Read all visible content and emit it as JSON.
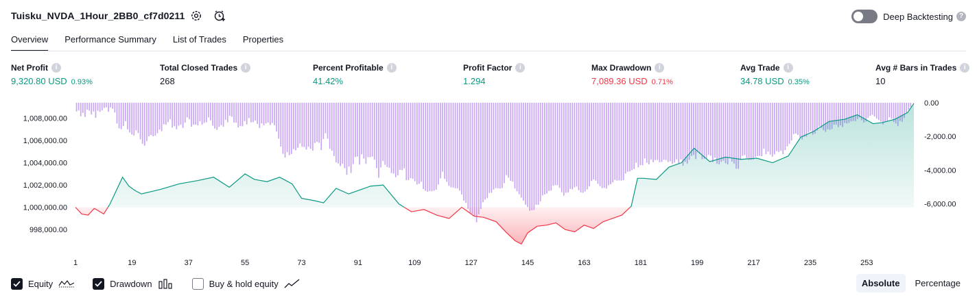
{
  "header": {
    "strategy_title": "Tuisku_NVDA_1Hour_2BB0_cf7d0211",
    "deep_backtesting_label": "Deep Backtesting",
    "help_glyph": "?"
  },
  "tabs": [
    {
      "label": "Overview",
      "active": true
    },
    {
      "label": "Performance Summary",
      "active": false
    },
    {
      "label": "List of Trades",
      "active": false
    },
    {
      "label": "Properties",
      "active": false
    }
  ],
  "metrics": [
    {
      "label": "Net Profit",
      "value": "9,320.80 USD",
      "pct": "0.93%",
      "tone": "pos"
    },
    {
      "label": "Total Closed Trades",
      "value": "268",
      "pct": "",
      "tone": "neutral"
    },
    {
      "label": "Percent Profitable",
      "value": "41.42%",
      "pct": "",
      "tone": "pos"
    },
    {
      "label": "Profit Factor",
      "value": "1.294",
      "pct": "",
      "tone": "pos"
    },
    {
      "label": "Max Drawdown",
      "value": "7,089.36 USD",
      "pct": "0.71%",
      "tone": "neg"
    },
    {
      "label": "Avg Trade",
      "value": "34.78 USD",
      "pct": "0.35%",
      "tone": "pos"
    },
    {
      "label": "Avg # Bars in Trades",
      "value": "10",
      "pct": "",
      "tone": "neutral"
    }
  ],
  "info_glyph": "i",
  "chart_data": {
    "type": "area",
    "x_tick_labels": [
      "1",
      "19",
      "37",
      "55",
      "73",
      "91",
      "109",
      "127",
      "145",
      "163",
      "181",
      "199",
      "217",
      "235",
      "253"
    ],
    "x_range": [
      1,
      268
    ],
    "y_left_tick_labels": [
      "1,008,000.00",
      "1,006,000.00",
      "1,004,000.00",
      "1,002,000.00",
      "1,000,000.00",
      "998,000.00"
    ],
    "y_left_range": [
      996600,
      1009500
    ],
    "y_right_tick_labels": [
      "0.00",
      "-2,000.00",
      "-4,000.00",
      "-6,000.00"
    ],
    "y_right_range": [
      -7150,
      0
    ],
    "baseline": 1000000,
    "equity_x": [
      1,
      3,
      5,
      7,
      10,
      12,
      16,
      18,
      20,
      22,
      28,
      34,
      40,
      45,
      50,
      55,
      58,
      62,
      66,
      70,
      73,
      77,
      80,
      84,
      88,
      92,
      95,
      99,
      104,
      108,
      112,
      116,
      120,
      124,
      128,
      131,
      135,
      138,
      141,
      143,
      145,
      148,
      151,
      154,
      157,
      160,
      163,
      166,
      169,
      172,
      175,
      178,
      180,
      182,
      186,
      190,
      194,
      198,
      203,
      208,
      213,
      218,
      223,
      228,
      232,
      236,
      241,
      246,
      250,
      255,
      258,
      262,
      266,
      268
    ],
    "equity_y": [
      1000000,
      999400,
      999300,
      999900,
      999400,
      1000300,
      1002700,
      1001900,
      1001500,
      1001200,
      1001600,
      1002100,
      1002400,
      1002700,
      1001800,
      1003000,
      1002500,
      1002300,
      1002700,
      1002100,
      1000800,
      1000600,
      1000400,
      1001700,
      1001200,
      1001600,
      1001900,
      1002000,
      1000300,
      999600,
      999800,
      999300,
      999000,
      1000000,
      999200,
      999100,
      998700,
      997800,
      997000,
      996700,
      997700,
      998300,
      998400,
      998600,
      998000,
      997800,
      998400,
      998100,
      998700,
      999000,
      999300,
      1000100,
      1002600,
      1002600,
      1002500,
      1003600,
      1004000,
      1005300,
      1004100,
      1004500,
      1004300,
      1004400,
      1004000,
      1004600,
      1006300,
      1006800,
      1007700,
      1007900,
      1008300,
      1007500,
      1007600,
      1007900,
      1008500,
      1009320
    ],
    "drawdown": [
      -520,
      -460,
      -800,
      -600,
      -840,
      -410,
      -470,
      -700,
      -520,
      -900,
      -470,
      -540,
      -450,
      -310,
      -280,
      -540,
      -280,
      -360,
      -580,
      -1240,
      -1520,
      -1570,
      -1380,
      -1100,
      -1580,
      -1760,
      -1880,
      -1940,
      -1640,
      -1800,
      -2170,
      -2440,
      -2550,
      -2280,
      -1990,
      -1920,
      -1990,
      -1950,
      -1810,
      -1590,
      -1690,
      -1280,
      -1300,
      -1150,
      -970,
      -1480,
      -1390,
      -1570,
      -1360,
      -1300,
      -1490,
      -1180,
      -870,
      -980,
      -1420,
      -1300,
      -1300,
      -1340,
      -1100,
      -1300,
      -1200,
      -1160,
      -870,
      -1050,
      -1360,
      -1530,
      -1610,
      -1430,
      -1330,
      -1420,
      -1010,
      -1160,
      -780,
      -830,
      -1180,
      -1180,
      -1470,
      -1380,
      -1400,
      -1090,
      -1290,
      -910,
      -1160,
      -1150,
      -1060,
      -1260,
      -1500,
      -1230,
      -1340,
      -1230,
      -1180,
      -1320,
      -1200,
      -1330,
      -1710,
      -2130,
      -2600,
      -3030,
      -3250,
      -2930,
      -3110,
      -3040,
      -2750,
      -2820,
      -2670,
      -2410,
      -2610,
      -2630,
      -2780,
      -2610,
      -2730,
      -2840,
      -2390,
      -2320,
      -2380,
      -2810,
      -2150,
      -1820,
      -2130,
      -2730,
      -2850,
      -3160,
      -3540,
      -3600,
      -3760,
      -3610,
      -3880,
      -4270,
      -3790,
      -4170,
      -3640,
      -3220,
      -3190,
      -3670,
      -3060,
      -3310,
      -3620,
      -3230,
      -3230,
      -3190,
      -3380,
      -3880,
      -4450,
      -3840,
      -3460,
      -3680,
      -3810,
      -3860,
      -4170,
      -4200,
      -4420,
      -4300,
      -3980,
      -4000,
      -3890,
      -4590,
      -4590,
      -4470,
      -4510,
      -4660,
      -4850,
      -4810,
      -4680,
      -5120,
      -5220,
      -5280,
      -5240,
      -5250,
      -5210,
      -5160,
      -4850,
      -4490,
      -4090,
      -4520,
      -4690,
      -4930,
      -5020,
      -5030,
      -5070,
      -5080,
      -5210,
      -5440,
      -5810,
      -5940,
      -6290,
      -6520,
      -6580,
      -6710,
      -7090,
      -6620,
      -6300,
      -5900,
      -5740,
      -5650,
      -5350,
      -5340,
      -5150,
      -5060,
      -5070,
      -5090,
      -5060,
      -4770,
      -4290,
      -4440,
      -4630,
      -4680,
      -5090,
      -5250,
      -5430,
      -5630,
      -5810,
      -6050,
      -6180,
      -6410,
      -6380,
      -6360,
      -6050,
      -6050,
      -5850,
      -5500,
      -5440,
      -5380,
      -5230,
      -5210,
      -4920,
      -4890,
      -4890,
      -5050,
      -5310,
      -5510,
      -5340,
      -5320,
      -5110,
      -5140,
      -5020,
      -4970,
      -5190,
      -5320,
      -5340,
      -5260,
      -5140,
      -4960,
      -4640,
      -4550,
      -4620,
      -4810,
      -4950,
      -5060,
      -5050,
      -5090,
      -4890,
      -4830,
      -4720,
      -4580,
      -4620,
      -4610,
      -4620,
      -4590,
      -4200,
      -4090,
      -4070,
      -4000,
      -3930,
      -3560,
      -3830,
      -3700,
      -3710,
      -3300,
      -3560,
      -3660,
      -3370,
      -3530,
      -3400,
      -3400,
      -3530,
      -3510,
      -3380,
      -3400,
      -3520,
      -3470,
      -3630,
      -3550,
      -3360,
      -3610,
      -3360,
      -3740,
      -3510,
      -3620,
      -3380,
      -3160,
      -3100,
      -3340,
      -2950,
      -3050,
      -3350,
      -3320,
      -3300,
      -3090,
      -3150,
      -3520,
      -3260,
      -3620,
      -3650,
      -3500,
      -3440,
      -3590,
      -3660,
      -3250,
      -3500,
      -3610,
      -3910,
      -3920,
      -3400,
      -3150,
      -3110,
      -3300,
      -3390,
      -3390,
      -3370,
      -3230,
      -3160,
      -3150,
      -3170,
      -2730,
      -3050,
      -2900,
      -3080,
      -3200,
      -3060,
      -2870,
      -2920,
      -2850,
      -3060,
      -2810,
      -2590,
      -2430,
      -2240,
      -1860,
      -1830,
      -1910,
      -2060,
      -2180,
      -2020,
      -2010,
      -1760,
      -1670,
      -1900,
      -1840,
      -1650,
      -1410,
      -1490,
      -1620,
      -1730,
      -1570,
      -1610,
      -1560,
      -1300,
      -1300,
      -1450,
      -1340,
      -1440,
      -1200,
      -1230,
      -1190,
      -1100,
      -1080,
      -1090,
      -960,
      -870,
      -1040,
      -1170,
      -1110,
      -900,
      -770,
      -710,
      -820,
      -940,
      -1020,
      -1120,
      -1290,
      -1160,
      -1080,
      -860,
      -960,
      -1140,
      -1230,
      -1390,
      -1080,
      -1130,
      -900,
      -590,
      -410,
      -250,
      0
    ]
  },
  "legend": [
    {
      "label": "Equity",
      "checked": true,
      "glyph": "equity-glyph-icon"
    },
    {
      "label": "Drawdown",
      "checked": true,
      "glyph": "drawdown-glyph-icon"
    },
    {
      "label": "Buy & hold equity",
      "checked": false,
      "glyph": "buy-hold-glyph-icon"
    }
  ],
  "modes": [
    {
      "label": "Absolute",
      "active": true
    },
    {
      "label": "Percentage",
      "active": false
    }
  ],
  "colors": {
    "positive": "#089981",
    "negative": "#f23645",
    "drawdown_bar": "#c9a5f7",
    "equity_fill_pos": "#d4f0e8",
    "equity_fill_neg": "#f9c6ce"
  }
}
